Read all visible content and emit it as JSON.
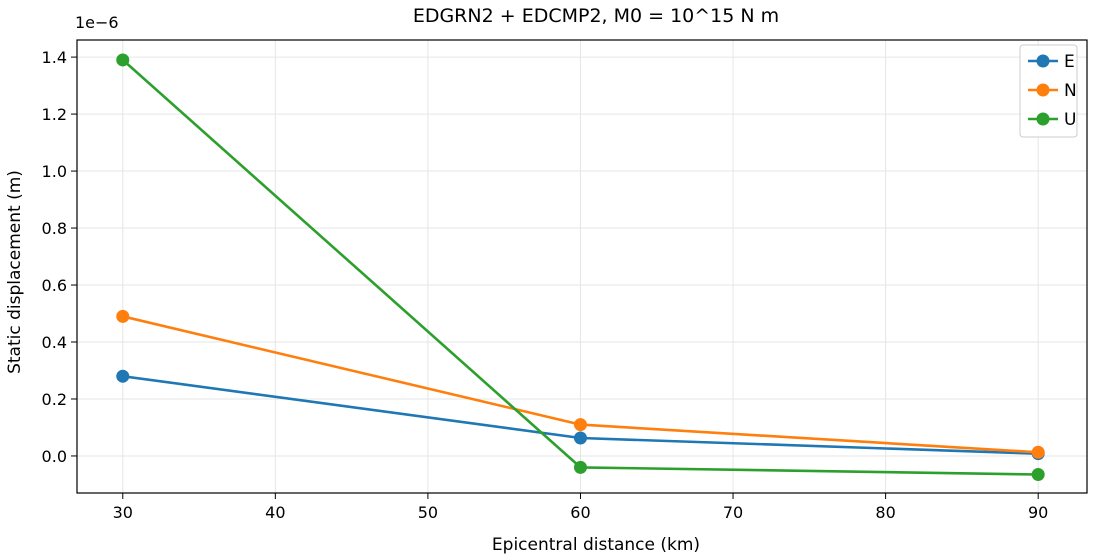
{
  "chart_data": {
    "type": "line",
    "title": "EDGRN2 + EDCMP2, M0 = 10^15 N m",
    "xlabel": "Epicentral distance (km)",
    "ylabel": "Static displacement (m)",
    "y_offset_label": "1e−6",
    "xlim": [
      27,
      93.2
    ],
    "ylim": [
      -0.13,
      1.46
    ],
    "x_ticks": [
      30,
      40,
      50,
      60,
      70,
      80,
      90
    ],
    "x_tick_labels": [
      "30",
      "40",
      "50",
      "60",
      "70",
      "80",
      "90"
    ],
    "y_ticks": [
      0.0,
      0.2,
      0.4,
      0.6,
      0.8,
      1.0,
      1.2,
      1.4
    ],
    "y_tick_labels": [
      "0.0",
      "0.2",
      "0.4",
      "0.6",
      "0.8",
      "1.0",
      "1.2",
      "1.4"
    ],
    "grid": true,
    "legend_position": "top-right",
    "x": [
      30,
      60,
      90
    ],
    "series": [
      {
        "name": "E",
        "color": "#1f77b4",
        "values": [
          0.28,
          0.063,
          0.008
        ]
      },
      {
        "name": "N",
        "color": "#ff7f0e",
        "values": [
          0.49,
          0.11,
          0.013
        ]
      },
      {
        "name": "U",
        "color": "#2ca02c",
        "values": [
          1.39,
          -0.04,
          -0.065
        ]
      }
    ]
  }
}
